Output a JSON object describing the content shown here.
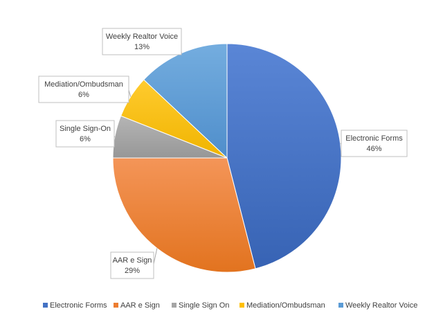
{
  "chart_data": {
    "type": "pie",
    "title": "",
    "legend_position": "bottom",
    "slices": [
      {
        "name": "Electronic Forms",
        "value": 46,
        "label_name": "Electronic Forms",
        "label_value": "46%",
        "color": "#4472C4"
      },
      {
        "name": "AAR e Sign",
        "value": 29,
        "label_name": "AAR e Sign",
        "label_value": "29%",
        "color": "#ED7D31"
      },
      {
        "name": "Single Sign On",
        "value": 6,
        "label_name": "Single Sign-On",
        "label_value": "6%",
        "color": "#A5A5A5"
      },
      {
        "name": "Mediation/Ombudsman",
        "value": 6,
        "label_name": "Mediation/Ombudsman",
        "label_value": "6%",
        "color": "#FFC000"
      },
      {
        "name": "Weekly Realtor Voice",
        "value": 13,
        "label_name": "Weekly Realtor Voice",
        "label_value": "13%",
        "color": "#5B9BD5"
      }
    ]
  }
}
